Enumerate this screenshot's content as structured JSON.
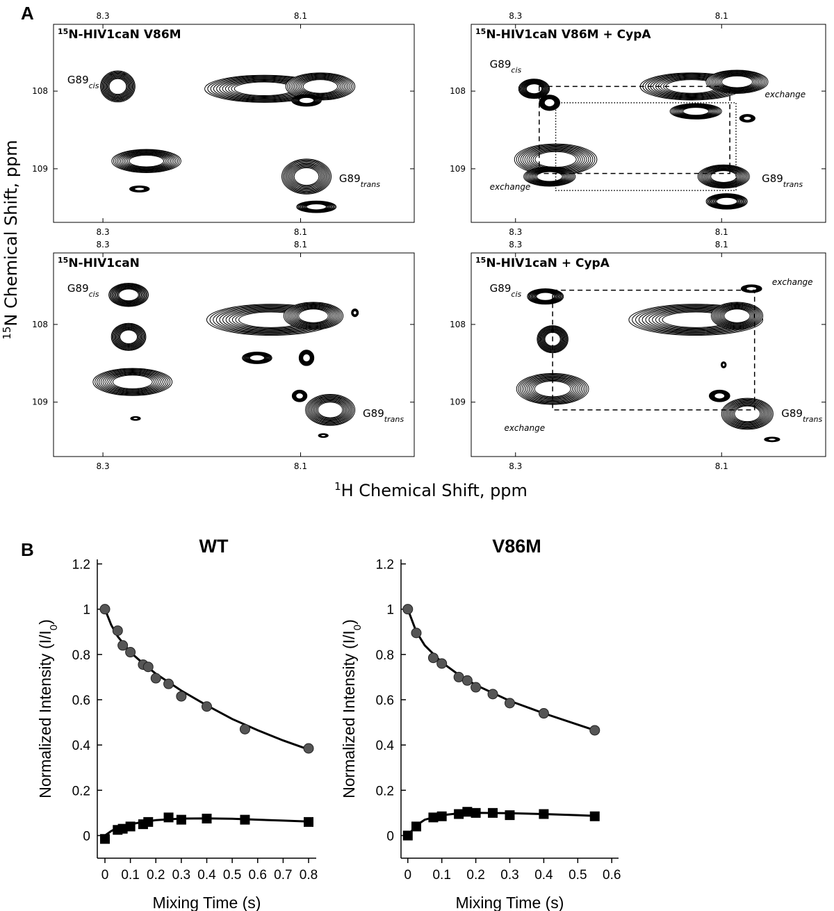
{
  "panel_labels": [
    "A",
    "B"
  ],
  "panel_a": {
    "x_label_sup": "1",
    "x_label": "H Chemical Shift, ppm",
    "y_label_sup": "15",
    "y_label": "N Chemical Shift, ppm"
  },
  "chart_data": [
    {
      "type": "nmr",
      "title_sup": "15",
      "title": "N-HIV1caN V86M",
      "xlim": [
        7.985,
        8.35
      ],
      "x_inverted": true,
      "xticks": [
        8.3,
        8.1
      ],
      "ylim": [
        107.14,
        109.69
      ],
      "y_inverted": true,
      "yticks": [
        108,
        109
      ],
      "peaks": [
        {
          "x": 8.285,
          "y": 107.94,
          "dx": 0.035,
          "dy": 0.4
        },
        {
          "x": 8.256,
          "y": 108.9,
          "dx": 0.07,
          "dy": 0.3
        },
        {
          "x": 8.263,
          "y": 109.26,
          "dx": 0.02,
          "dy": 0.08
        },
        {
          "x": 8.137,
          "y": 107.97,
          "dx": 0.12,
          "dy": 0.35
        },
        {
          "x": 8.08,
          "y": 107.94,
          "dx": 0.07,
          "dy": 0.35
        },
        {
          "x": 8.094,
          "y": 108.12,
          "dx": 0.03,
          "dy": 0.15
        },
        {
          "x": 8.094,
          "y": 109.1,
          "dx": 0.05,
          "dy": 0.45
        },
        {
          "x": 8.084,
          "y": 109.49,
          "dx": 0.04,
          "dy": 0.15
        }
      ],
      "annotations": [
        {
          "text": "G89",
          "sub": "cis",
          "x": 8.336,
          "y": 107.9
        },
        {
          "text": "G89",
          "sub": "trans",
          "x": 8.061,
          "y": 109.17
        }
      ]
    },
    {
      "type": "nmr",
      "title_sup": "15",
      "title": "N-HIV1caN V86M + CypA",
      "xlim": [
        7.999,
        8.343
      ],
      "x_inverted": true,
      "xticks": [
        8.3,
        8.1
      ],
      "ylim": [
        107.14,
        109.69
      ],
      "y_inverted": true,
      "yticks": [
        108,
        109
      ],
      "peaks": [
        {
          "x": 8.282,
          "y": 107.97,
          "dx": 0.03,
          "dy": 0.25
        },
        {
          "x": 8.267,
          "y": 108.15,
          "dx": 0.02,
          "dy": 0.2
        },
        {
          "x": 8.261,
          "y": 108.88,
          "dx": 0.08,
          "dy": 0.4
        },
        {
          "x": 8.267,
          "y": 109.1,
          "dx": 0.05,
          "dy": 0.25
        },
        {
          "x": 8.129,
          "y": 107.94,
          "dx": 0.1,
          "dy": 0.35
        },
        {
          "x": 8.085,
          "y": 107.88,
          "dx": 0.06,
          "dy": 0.3
        },
        {
          "x": 8.125,
          "y": 108.26,
          "dx": 0.05,
          "dy": 0.2
        },
        {
          "x": 8.098,
          "y": 109.1,
          "dx": 0.05,
          "dy": 0.3
        },
        {
          "x": 8.095,
          "y": 109.42,
          "dx": 0.04,
          "dy": 0.2
        },
        {
          "x": 8.075,
          "y": 108.35,
          "dx": 0.015,
          "dy": 0.1
        }
      ],
      "boxes": [
        {
          "x": [
            8.277,
            8.092
          ],
          "y": [
            107.94,
            109.06
          ],
          "style": "dashed"
        },
        {
          "x": [
            8.261,
            8.086
          ],
          "y": [
            108.15,
            109.28
          ],
          "style": "dotted"
        }
      ],
      "annotations": [
        {
          "text": "G89",
          "sub": "cis",
          "x": 8.325,
          "y": 107.7
        },
        {
          "text": "exchange",
          "style": "italic",
          "x": 8.058,
          "y": 108.08
        },
        {
          "text": "exchange",
          "style": "italic",
          "x": 8.325,
          "y": 109.27
        },
        {
          "text": "G89",
          "sub": "trans",
          "x": 8.061,
          "y": 109.17
        }
      ]
    },
    {
      "type": "nmr",
      "title_sup": "15",
      "title": "N-HIV1caN",
      "xlim": [
        7.985,
        8.35
      ],
      "x_inverted": true,
      "xticks": [
        8.3,
        8.1
      ],
      "ylim": [
        107.08,
        109.7
      ],
      "y_inverted": true,
      "yticks": [
        108,
        109
      ],
      "peaks": [
        {
          "x": 8.274,
          "y": 107.62,
          "dx": 0.04,
          "dy": 0.3
        },
        {
          "x": 8.274,
          "y": 108.16,
          "dx": 0.035,
          "dy": 0.35
        },
        {
          "x": 8.27,
          "y": 108.74,
          "dx": 0.08,
          "dy": 0.35
        },
        {
          "x": 8.13,
          "y": 107.94,
          "dx": 0.13,
          "dy": 0.4
        },
        {
          "x": 8.087,
          "y": 107.89,
          "dx": 0.06,
          "dy": 0.35
        },
        {
          "x": 8.144,
          "y": 108.43,
          "dx": 0.03,
          "dy": 0.15
        },
        {
          "x": 8.094,
          "y": 108.43,
          "dx": 0.015,
          "dy": 0.2
        },
        {
          "x": 8.07,
          "y": 109.1,
          "dx": 0.05,
          "dy": 0.4
        },
        {
          "x": 8.101,
          "y": 108.92,
          "dx": 0.015,
          "dy": 0.15
        },
        {
          "x": 8.045,
          "y": 107.85,
          "dx": 0.007,
          "dy": 0.1
        },
        {
          "x": 8.077,
          "y": 109.43,
          "dx": 0.01,
          "dy": 0.05
        },
        {
          "x": 8.267,
          "y": 109.21,
          "dx": 0.01,
          "dy": 0.05
        }
      ],
      "annotations": [
        {
          "text": "G89",
          "sub": "cis",
          "x": 8.336,
          "y": 107.58
        },
        {
          "text": "G89",
          "sub": "trans",
          "x": 8.037,
          "y": 109.19
        }
      ]
    },
    {
      "type": "nmr",
      "title_sup": "15",
      "title": "N-HIV1caN + CypA",
      "xlim": [
        7.999,
        8.343
      ],
      "x_inverted": true,
      "xticks": [
        8.3,
        8.1
      ],
      "ylim": [
        107.08,
        109.7
      ],
      "y_inverted": true,
      "yticks": [
        108,
        109
      ],
      "peaks": [
        {
          "x": 8.271,
          "y": 107.64,
          "dx": 0.035,
          "dy": 0.2
        },
        {
          "x": 8.264,
          "y": 108.19,
          "dx": 0.03,
          "dy": 0.35
        },
        {
          "x": 8.264,
          "y": 108.83,
          "dx": 0.07,
          "dy": 0.4
        },
        {
          "x": 8.125,
          "y": 107.94,
          "dx": 0.13,
          "dy": 0.4
        },
        {
          "x": 8.085,
          "y": 107.89,
          "dx": 0.05,
          "dy": 0.35
        },
        {
          "x": 8.071,
          "y": 107.54,
          "dx": 0.02,
          "dy": 0.1
        },
        {
          "x": 8.075,
          "y": 109.15,
          "dx": 0.05,
          "dy": 0.4
        },
        {
          "x": 8.102,
          "y": 108.92,
          "dx": 0.02,
          "dy": 0.15
        },
        {
          "x": 8.051,
          "y": 109.48,
          "dx": 0.015,
          "dy": 0.06
        },
        {
          "x": 8.098,
          "y": 108.52,
          "dx": 0.005,
          "dy": 0.08
        }
      ],
      "boxes": [
        {
          "x": [
            8.264,
            8.068
          ],
          "y": [
            107.56,
            109.1
          ],
          "style": "dashed"
        }
      ],
      "annotations": [
        {
          "text": "G89",
          "sub": "cis",
          "x": 8.325,
          "y": 107.58
        },
        {
          "text": "exchange",
          "style": "italic",
          "x": 8.051,
          "y": 107.49
        },
        {
          "text": "exchange",
          "style": "italic",
          "x": 8.311,
          "y": 109.37
        },
        {
          "text": "G89",
          "sub": "trans",
          "x": 8.042,
          "y": 109.19
        }
      ]
    },
    {
      "type": "scatter",
      "title": "WT",
      "x_label": "Mixing Time (s)",
      "y_label": "Normalized Intensity (I/I",
      "y_label_sub": "0",
      "y_label_end": ")",
      "xlim": [
        -0.03,
        0.83
      ],
      "xticks": [
        0,
        0.1,
        0.2,
        0.3,
        0.4,
        0.5,
        0.6,
        0.7,
        0.8
      ],
      "ylim": [
        -0.1,
        1.22
      ],
      "yticks": [
        0,
        0.2,
        0.4,
        0.6,
        0.8,
        1,
        1.2
      ],
      "series": [
        {
          "marker": "circle",
          "color": "#555555",
          "x": [
            0,
            0.05,
            0.07,
            0.1,
            0.15,
            0.17,
            0.2,
            0.25,
            0.3,
            0.4,
            0.55,
            0.8
          ],
          "values": [
            1.0,
            0.905,
            0.84,
            0.81,
            0.755,
            0.745,
            0.695,
            0.67,
            0.615,
            0.57,
            0.47,
            0.385
          ]
        },
        {
          "marker": "square",
          "color": "#000000",
          "x": [
            0,
            0.05,
            0.07,
            0.1,
            0.15,
            0.17,
            0.25,
            0.3,
            0.4,
            0.55,
            0.8
          ],
          "values": [
            -0.015,
            0.025,
            0.03,
            0.04,
            0.05,
            0.06,
            0.08,
            0.07,
            0.075,
            0.07,
            0.06
          ]
        },
        {
          "marker": "line",
          "color": "#000000",
          "x": [
            0,
            0.025,
            0.05,
            0.1,
            0.15,
            0.2,
            0.3,
            0.4,
            0.5,
            0.6,
            0.7,
            0.8
          ],
          "values": [
            1.0,
            0.93,
            0.88,
            0.81,
            0.76,
            0.715,
            0.64,
            0.575,
            0.515,
            0.465,
            0.42,
            0.38
          ]
        },
        {
          "marker": "line",
          "color": "#000000",
          "x": [
            0,
            0.025,
            0.05,
            0.1,
            0.15,
            0.2,
            0.3,
            0.4,
            0.5,
            0.6,
            0.7,
            0.8
          ],
          "values": [
            0,
            0.02,
            0.035,
            0.05,
            0.06,
            0.068,
            0.075,
            0.076,
            0.074,
            0.07,
            0.066,
            0.062
          ]
        }
      ]
    },
    {
      "type": "scatter",
      "title": "V86M",
      "x_label": "Mixing Time (s)",
      "y_label": "Normalized Intensity (I/I",
      "y_label_sub": "0",
      "y_label_end": ")",
      "xlim": [
        -0.02,
        0.62
      ],
      "xticks": [
        0,
        0.1,
        0.2,
        0.3,
        0.4,
        0.5,
        0.6
      ],
      "ylim": [
        -0.1,
        1.22
      ],
      "yticks": [
        0,
        0.2,
        0.4,
        0.6,
        0.8,
        1,
        1.2
      ],
      "series": [
        {
          "marker": "circle",
          "color": "#555555",
          "x": [
            0,
            0.025,
            0.075,
            0.1,
            0.15,
            0.175,
            0.2,
            0.25,
            0.3,
            0.4,
            0.55
          ],
          "values": [
            1.0,
            0.895,
            0.785,
            0.76,
            0.7,
            0.685,
            0.655,
            0.625,
            0.585,
            0.54,
            0.465
          ]
        },
        {
          "marker": "square",
          "color": "#000000",
          "x": [
            0,
            0.025,
            0.075,
            0.1,
            0.15,
            0.175,
            0.2,
            0.25,
            0.3,
            0.4,
            0.55
          ],
          "values": [
            0,
            0.04,
            0.08,
            0.085,
            0.095,
            0.105,
            0.1,
            0.1,
            0.09,
            0.095,
            0.085
          ]
        },
        {
          "marker": "line",
          "color": "#000000",
          "x": [
            0,
            0.025,
            0.05,
            0.1,
            0.15,
            0.2,
            0.3,
            0.4,
            0.5,
            0.55
          ],
          "values": [
            1.0,
            0.9,
            0.84,
            0.765,
            0.71,
            0.665,
            0.595,
            0.54,
            0.49,
            0.465
          ]
        },
        {
          "marker": "line",
          "color": "#000000",
          "x": [
            0,
            0.025,
            0.05,
            0.1,
            0.15,
            0.2,
            0.3,
            0.4,
            0.5,
            0.55
          ],
          "values": [
            0,
            0.045,
            0.07,
            0.09,
            0.098,
            0.1,
            0.099,
            0.095,
            0.09,
            0.087
          ]
        }
      ]
    }
  ]
}
